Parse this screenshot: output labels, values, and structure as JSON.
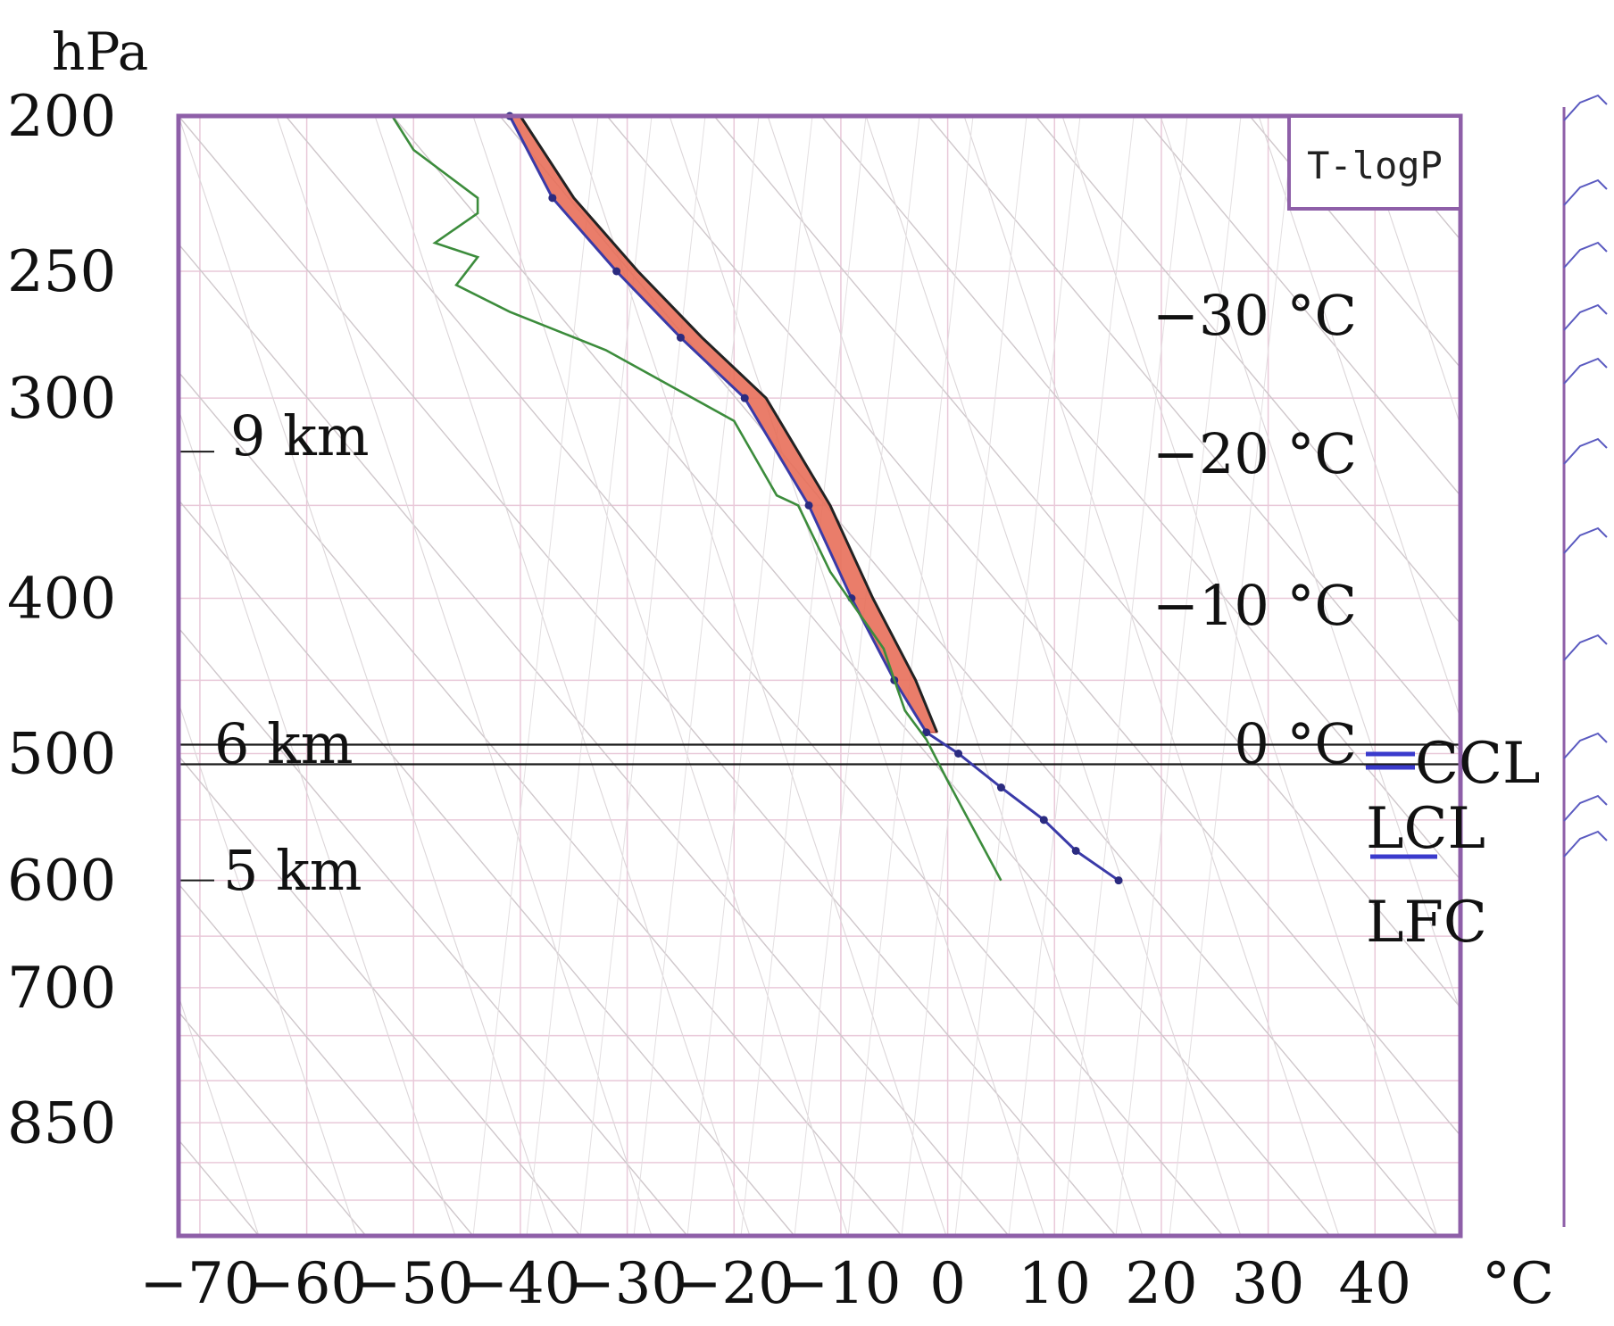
{
  "chart_data": {
    "type": "line",
    "title": "T-logP",
    "pressure_unit": "hPa",
    "temperature_unit": "°C",
    "y_ticks": [
      200,
      250,
      300,
      400,
      500,
      600,
      700,
      850
    ],
    "x_ticks": [
      -70,
      -60,
      -50,
      -40,
      -30,
      -20,
      -10,
      0,
      10,
      20,
      30,
      40
    ],
    "x_tick_labels": [
      "−70",
      "−60",
      "−50",
      "−40",
      "−30",
      "−20",
      "−10",
      "0",
      "10",
      "20",
      "30",
      "40"
    ],
    "ylim": [
      200,
      1000
    ],
    "xlim": [
      -72,
      48
    ],
    "grid": true,
    "heights": [
      {
        "label": "9 km",
        "p": 300
      },
      {
        "label": "6 km",
        "p": 500
      },
      {
        "label": "5 km",
        "p": 600
      }
    ],
    "isotherm_labels": [
      {
        "label": "−30 °C",
        "value": -30
      },
      {
        "label": "−20 °C",
        "value": -20
      },
      {
        "label": "−10 °C",
        "value": -10
      },
      {
        "label": "0 °C",
        "value": 0
      }
    ],
    "levels": [
      {
        "label": "CCL",
        "p": 525
      },
      {
        "label": "LCL",
        "p": 575
      },
      {
        "label": "LFC",
        "p": 650
      }
    ],
    "series": [
      {
        "role": "temperature",
        "color": "#3a3aa8",
        "points": [
          [
            -41,
            200
          ],
          [
            -37,
            225
          ],
          [
            -31,
            250
          ],
          [
            -25,
            275
          ],
          [
            -19,
            300
          ],
          [
            -13,
            350
          ],
          [
            -9,
            400
          ],
          [
            -5,
            450
          ],
          [
            -2,
            485
          ],
          [
            1,
            500
          ],
          [
            5,
            525
          ],
          [
            9,
            550
          ],
          [
            12,
            575
          ],
          [
            16,
            600
          ]
        ]
      },
      {
        "role": "dewpoint",
        "color": "#3c8c3c",
        "points": [
          [
            -52,
            200
          ],
          [
            -50,
            210
          ],
          [
            -44,
            225
          ],
          [
            -44,
            230
          ],
          [
            -48,
            240
          ],
          [
            -44,
            245
          ],
          [
            -46,
            255
          ],
          [
            -41,
            265
          ],
          [
            -32,
            280
          ],
          [
            -20,
            310
          ],
          [
            -16,
            345
          ],
          [
            -14,
            350
          ],
          [
            -11,
            385
          ],
          [
            -6,
            430
          ],
          [
            -4,
            470
          ],
          [
            -2,
            490
          ],
          [
            0,
            520
          ],
          [
            5,
            600
          ]
        ]
      },
      {
        "role": "parcel",
        "color": "#222222",
        "points": [
          [
            -40,
            200
          ],
          [
            -35,
            225
          ],
          [
            -29,
            250
          ],
          [
            -23,
            275
          ],
          [
            -17,
            300
          ],
          [
            -11,
            350
          ],
          [
            -7,
            400
          ],
          [
            -3,
            450
          ],
          [
            -1,
            485
          ]
        ]
      }
    ],
    "cape_fill_color": "#e8705a"
  }
}
